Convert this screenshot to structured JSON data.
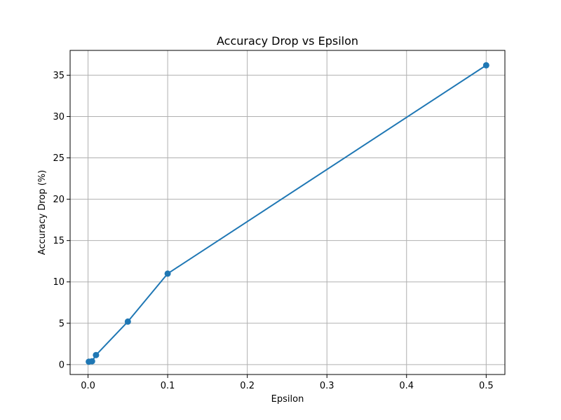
{
  "chart_data": {
    "type": "line",
    "title": "Accuracy Drop vs Epsilon",
    "xlabel": "Epsilon",
    "ylabel": "Accuracy Drop (%)",
    "x": [
      0.001,
      0.005,
      0.01,
      0.05,
      0.1,
      0.5
    ],
    "series": [
      {
        "values": [
          0.35,
          0.4,
          1.15,
          5.2,
          11.0,
          36.2
        ]
      }
    ],
    "xlim": [
      -0.0225,
      0.5235
    ],
    "ylim": [
      -1.2,
      38
    ],
    "xticks": [
      0.0,
      0.1,
      0.2,
      0.3,
      0.4,
      0.5
    ],
    "xtick_labels": [
      "0.0",
      "0.1",
      "0.2",
      "0.3",
      "0.4",
      "0.5"
    ],
    "yticks": [
      0,
      5,
      10,
      15,
      20,
      25,
      30,
      35
    ],
    "ytick_labels": [
      "0",
      "5",
      "10",
      "15",
      "20",
      "25",
      "30",
      "35"
    ],
    "grid": true,
    "marker": "circle",
    "colors": {
      "line": "#1f77b4",
      "grid": "#b0b0b0",
      "axes": "#000000"
    }
  }
}
